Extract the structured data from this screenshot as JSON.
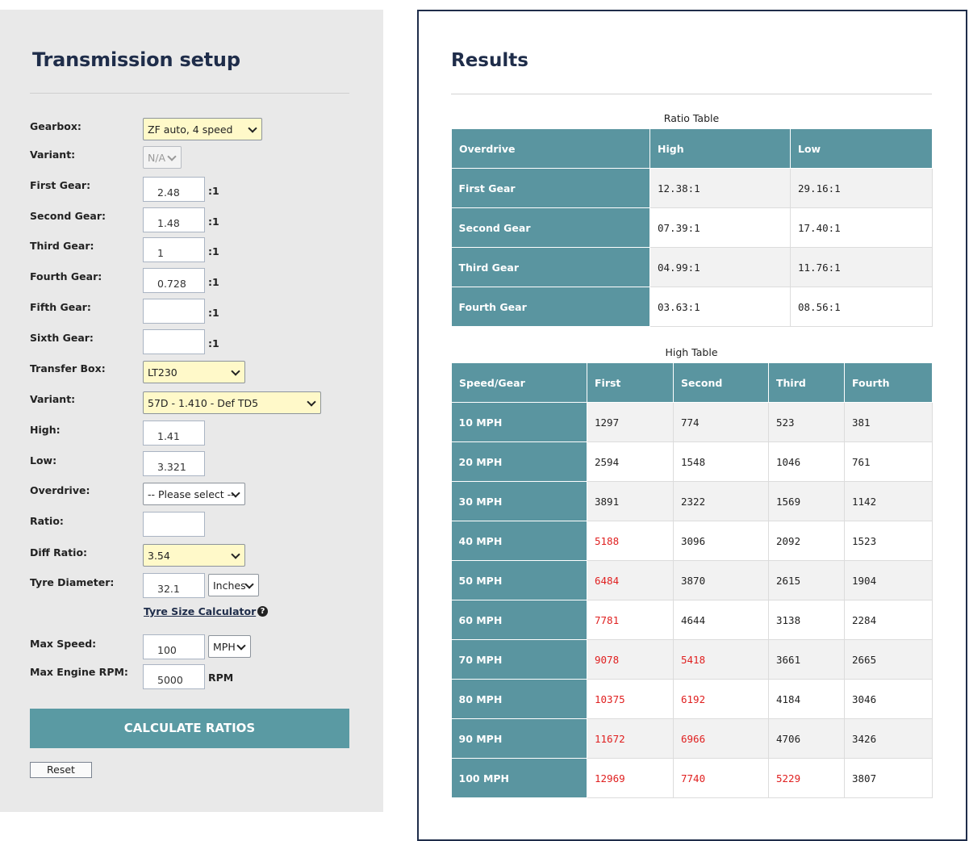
{
  "setup": {
    "title": "Transmission setup",
    "fields": {
      "gearbox": {
        "label": "Gearbox:",
        "value": "ZF auto, 4 speed"
      },
      "variant": {
        "label": "Variant:",
        "value": "N/A"
      },
      "first_gear": {
        "label": "First Gear:",
        "value": "2.48",
        "suffix": ":1"
      },
      "second_gear": {
        "label": "Second Gear:",
        "value": "1.48",
        "suffix": ":1"
      },
      "third_gear": {
        "label": "Third Gear:",
        "value": "1",
        "suffix": ":1"
      },
      "fourth_gear": {
        "label": "Fourth Gear:",
        "value": "0.728",
        "suffix": ":1"
      },
      "fifth_gear": {
        "label": "Fifth Gear:",
        "value": "",
        "suffix": ":1"
      },
      "sixth_gear": {
        "label": "Sixth Gear:",
        "value": "",
        "suffix": ":1"
      },
      "transfer_box": {
        "label": "Transfer Box:",
        "value": "LT230"
      },
      "transfer_variant": {
        "label": "Variant:",
        "value": "57D - 1.410 - Def TD5"
      },
      "high": {
        "label": "High:",
        "value": "1.41"
      },
      "low": {
        "label": "Low:",
        "value": "3.321"
      },
      "overdrive": {
        "label": "Overdrive:",
        "value": "-- Please select --"
      },
      "ratio": {
        "label": "Ratio:",
        "value": ""
      },
      "diff_ratio": {
        "label": "Diff Ratio:",
        "value": "3.54"
      },
      "tyre_diameter": {
        "label": "Tyre Diameter:",
        "value": "32.1",
        "unit": "Inches"
      },
      "max_speed": {
        "label": "Max Speed:",
        "value": "100",
        "unit": "MPH"
      },
      "max_rpm": {
        "label": "Max Engine RPM:",
        "value": "5000",
        "suffix": "RPM"
      }
    },
    "tyre_calc_link": "Tyre Size Calculator",
    "help_glyph": "?",
    "calculate_button": "CALCULATE RATIOS",
    "reset_button": "Reset"
  },
  "results": {
    "title": "Results",
    "ratio_table": {
      "caption": "Ratio Table",
      "headers": [
        "Overdrive",
        "High",
        "Low"
      ],
      "rows": [
        {
          "label": "First Gear",
          "cells": [
            "12.38:1",
            "29.16:1"
          ]
        },
        {
          "label": "Second Gear",
          "cells": [
            "07.39:1",
            "17.40:1"
          ]
        },
        {
          "label": "Third Gear",
          "cells": [
            "04.99:1",
            "11.76:1"
          ]
        },
        {
          "label": "Fourth Gear",
          "cells": [
            "03.63:1",
            "08.56:1"
          ]
        }
      ]
    },
    "high_table": {
      "caption": "High Table",
      "headers": [
        "Speed/Gear",
        "First",
        "Second",
        "Third",
        "Fourth"
      ],
      "rows": [
        {
          "label": "10 MPH",
          "cells": [
            "1297",
            "774",
            "523",
            "381"
          ],
          "over_rpm": [
            false,
            false,
            false,
            false
          ]
        },
        {
          "label": "20 MPH",
          "cells": [
            "2594",
            "1548",
            "1046",
            "761"
          ],
          "over_rpm": [
            false,
            false,
            false,
            false
          ]
        },
        {
          "label": "30 MPH",
          "cells": [
            "3891",
            "2322",
            "1569",
            "1142"
          ],
          "over_rpm": [
            false,
            false,
            false,
            false
          ]
        },
        {
          "label": "40 MPH",
          "cells": [
            "5188",
            "3096",
            "2092",
            "1523"
          ],
          "over_rpm": [
            true,
            false,
            false,
            false
          ]
        },
        {
          "label": "50 MPH",
          "cells": [
            "6484",
            "3870",
            "2615",
            "1904"
          ],
          "over_rpm": [
            true,
            false,
            false,
            false
          ]
        },
        {
          "label": "60 MPH",
          "cells": [
            "7781",
            "4644",
            "3138",
            "2284"
          ],
          "over_rpm": [
            true,
            false,
            false,
            false
          ]
        },
        {
          "label": "70 MPH",
          "cells": [
            "9078",
            "5418",
            "3661",
            "2665"
          ],
          "over_rpm": [
            true,
            true,
            false,
            false
          ]
        },
        {
          "label": "80 MPH",
          "cells": [
            "10375",
            "6192",
            "4184",
            "3046"
          ],
          "over_rpm": [
            true,
            true,
            false,
            false
          ]
        },
        {
          "label": "90 MPH",
          "cells": [
            "11672",
            "6966",
            "4706",
            "3426"
          ],
          "over_rpm": [
            true,
            true,
            false,
            false
          ]
        },
        {
          "label": "100 MPH",
          "cells": [
            "12969",
            "7740",
            "5229",
            "3807"
          ],
          "over_rpm": [
            true,
            true,
            true,
            false
          ]
        }
      ]
    }
  },
  "colors": {
    "header_teal": "#5a95a0",
    "button_teal": "#5a9aa3",
    "title_navy": "#1f2d4a",
    "over_rpm_red": "#e02020",
    "select_yellow": "#fff9c9",
    "panel_grey": "#e9e9e9"
  }
}
